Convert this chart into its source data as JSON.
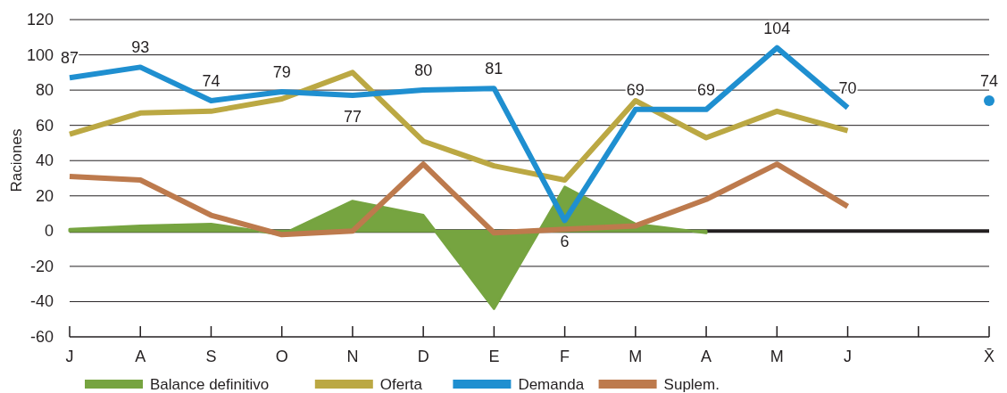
{
  "chart_data": {
    "type": "line",
    "ylabel": "Raciones",
    "categories": [
      "J",
      "A",
      "S",
      "O",
      "N",
      "D",
      "E",
      "F",
      "M",
      "A",
      "M",
      "J",
      null,
      "X̄"
    ],
    "ylim": [
      -60,
      120
    ],
    "yticks": [
      -60,
      -40,
      -20,
      0,
      20,
      40,
      60,
      80,
      100,
      120
    ],
    "grid": "y",
    "legend": "bottom",
    "ref_lines": [
      {
        "axis": "y",
        "value": 0,
        "color": "#231f20"
      }
    ],
    "series": [
      {
        "name": "Balance definitivo",
        "type": "area",
        "color": "#76a440",
        "values": [
          1,
          3,
          4,
          -2,
          17,
          9,
          -44,
          25,
          4,
          -1,
          null,
          null,
          null,
          null
        ]
      },
      {
        "name": "Oferta",
        "color": "#bba843",
        "values": [
          55,
          67,
          68,
          75,
          90,
          51,
          37,
          29,
          74,
          53,
          68,
          57,
          null,
          null
        ]
      },
      {
        "name": "Demanda",
        "color": "#1f8fd0",
        "values": [
          87,
          93,
          74,
          79,
          77,
          80,
          81,
          6,
          69,
          69,
          104,
          70,
          null,
          74
        ],
        "value_labels": [
          "87",
          "93",
          "74",
          "79",
          "77",
          "80",
          "81",
          "6",
          "69",
          "69",
          "104",
          "70",
          null,
          "74"
        ]
      },
      {
        "name": "Suplem.",
        "color": "#bd7a4d",
        "values": [
          31,
          29,
          9,
          -2,
          0,
          38,
          -1,
          1,
          3,
          18,
          38,
          14,
          null,
          null
        ]
      }
    ]
  }
}
